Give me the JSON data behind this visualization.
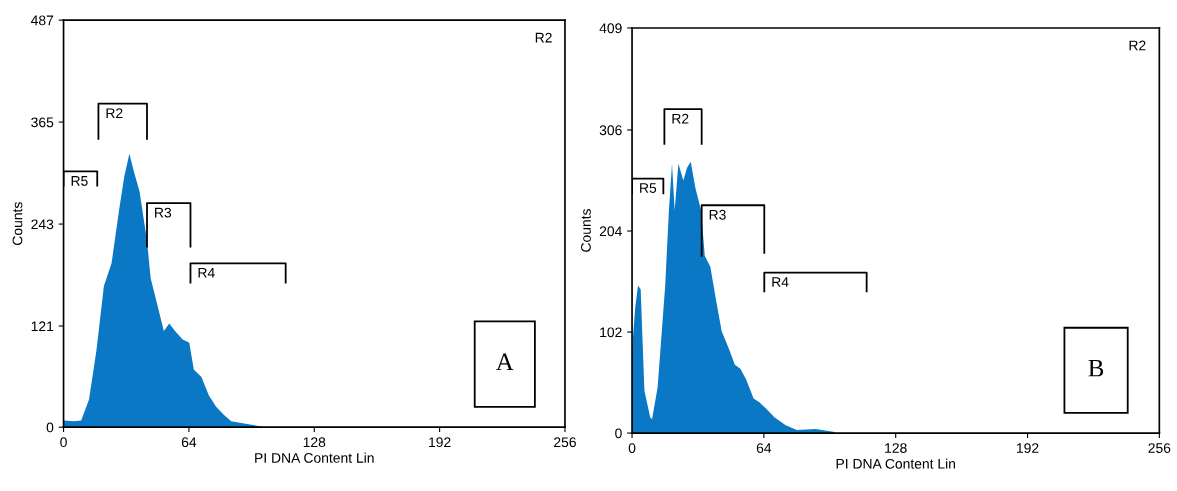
{
  "chart_data": [
    {
      "type": "area",
      "xlabel": "PI DNA Content Lin",
      "ylabel": "Counts",
      "xlim": [
        0,
        256
      ],
      "ylim": [
        0,
        487
      ],
      "xticks": [
        0,
        64,
        128,
        192,
        256
      ],
      "yticks": [
        0,
        121,
        243,
        365,
        487
      ],
      "series": [
        {
          "color": "#0a78c4",
          "x": [
            0,
            5.4,
            9,
            13,
            16.8,
            20.6,
            24.5,
            28.3,
            31,
            33.6,
            36,
            38.8,
            42.6,
            44.5,
            47.4,
            51.2,
            54,
            56.9,
            60.8,
            64.2,
            66.5,
            70.4,
            74.2,
            78,
            81.8,
            85.6,
            93,
            103
          ],
          "values": [
            8,
            7,
            8,
            33,
            92,
            169,
            196,
            259,
            300,
            327,
            305,
            282,
            223,
            178,
            151,
            115,
            124,
            115,
            105,
            101,
            69,
            60,
            38,
            24,
            15,
            7,
            4,
            0
          ]
        },
        {
          "type": "line",
          "name": "R5",
          "color": "#000000",
          "x": [
            0,
            0,
            17.2,
            17.2
          ],
          "values": [
            289,
            306,
            306,
            289
          ]
        },
        {
          "type": "line",
          "name": "R2",
          "color": "#000000",
          "x": [
            17.8,
            17.8,
            42.6,
            42.6
          ],
          "values": [
            345,
            387,
            387,
            345
          ]
        },
        {
          "type": "line",
          "name": "R3",
          "color": "#000000",
          "x": [
            42.6,
            42.6,
            64.8,
            64.8
          ],
          "values": [
            216,
            268,
            268,
            216
          ]
        },
        {
          "type": "line",
          "name": "R4",
          "color": "#000000",
          "x": [
            64.8,
            64.8,
            113.4,
            113.4
          ],
          "values": [
            173,
            196,
            196,
            173
          ]
        }
      ],
      "annotations": [
        "R2",
        "A"
      ]
    },
    {
      "type": "area",
      "xlabel": "PI DNA Content Lin",
      "ylabel": "Counts",
      "xlim": [
        0,
        256
      ],
      "ylim": [
        0,
        409
      ],
      "xticks": [
        0,
        64,
        128,
        192,
        256
      ],
      "yticks": [
        0,
        102,
        204,
        306,
        409
      ],
      "series": [
        {
          "color": "#0a78c4",
          "x": [
            0,
            1.5,
            2.9,
            4.2,
            6,
            8.8,
            9.7,
            12.4,
            16.1,
            17.9,
            19.4,
            20.7,
            22.5,
            24.9,
            26.7,
            28.5,
            30.7,
            33.5,
            35.3,
            38,
            40.8,
            43.5,
            47.2,
            49.9,
            52.6,
            55.4,
            59,
            61.8,
            65.4,
            69.1,
            74.6,
            80,
            89,
            98.4
          ],
          "values": [
            84,
            126,
            149,
            145,
            43,
            16,
            14,
            46,
            149,
            225,
            272,
            225,
            272,
            255,
            268,
            274,
            248,
            225,
            179,
            168,
            134,
            103,
            84,
            69,
            65,
            54,
            35,
            31,
            24,
            16,
            8,
            3,
            4,
            1
          ]
        },
        {
          "type": "line",
          "name": "R5",
          "color": "#000000",
          "x": [
            0,
            0,
            15.2,
            15.2
          ],
          "values": [
            242,
            257,
            257,
            242
          ]
        },
        {
          "type": "line",
          "name": "R2",
          "color": "#000000",
          "x": [
            15.7,
            15.7,
            33.8,
            33.8
          ],
          "values": [
            292,
            327,
            327,
            292
          ]
        },
        {
          "type": "line",
          "name": "R3",
          "color": "#000000",
          "x": [
            33.8,
            33.8,
            64.2,
            64.2
          ],
          "values": [
            179,
            230,
            230,
            182
          ]
        },
        {
          "type": "line",
          "name": "R4",
          "color": "#000000",
          "x": [
            64.2,
            64.2,
            113.9,
            113.9
          ],
          "values": [
            143,
            162,
            162,
            143
          ]
        }
      ],
      "annotations": [
        "R2",
        "B"
      ]
    }
  ]
}
